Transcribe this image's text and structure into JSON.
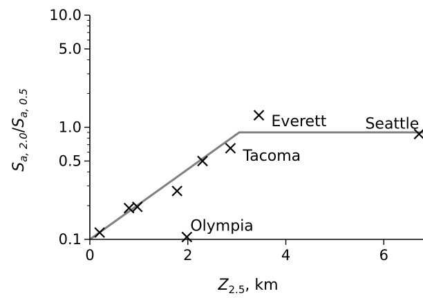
{
  "chart_data": {
    "type": "scatter",
    "title": "",
    "xlabel": "Z",
    "xlabel_sub": "2.5",
    "xlabel_unit": ", km",
    "ylabel_parts": [
      {
        "text": "S",
        "style": "italic",
        "sub": false
      },
      {
        "text": "a, 2.0",
        "style": "italic",
        "sub": true
      },
      {
        "text": "/",
        "style": "normal",
        "sub": false
      },
      {
        "text": "S",
        "style": "italic",
        "sub": false
      },
      {
        "text": "a, 0.5",
        "style": "italic",
        "sub": true
      }
    ],
    "xlim": [
      0,
      6.8
    ],
    "ylim": [
      0.1,
      10.0
    ],
    "yscale": "log",
    "x_ticks": [
      {
        "value": 0,
        "label": "0"
      },
      {
        "value": 2,
        "label": "2"
      },
      {
        "value": 4,
        "label": "4"
      },
      {
        "value": 6,
        "label": "6"
      }
    ],
    "y_ticks": [
      {
        "value": 0.1,
        "label": "0.1"
      },
      {
        "value": 0.5,
        "label": "0.5"
      },
      {
        "value": 1.0,
        "label": "1.0"
      },
      {
        "value": 5.0,
        "label": "5.0"
      },
      {
        "value": 10.0,
        "label": "10.0"
      }
    ],
    "grid": false,
    "points": [
      {
        "x": 0.2,
        "y": 0.115,
        "label": ""
      },
      {
        "x": 0.8,
        "y": 0.19,
        "label": ""
      },
      {
        "x": 0.97,
        "y": 0.195,
        "label": ""
      },
      {
        "x": 1.78,
        "y": 0.27,
        "label": ""
      },
      {
        "x": 2.3,
        "y": 0.5,
        "label": ""
      },
      {
        "x": 2.87,
        "y": 0.65,
        "label": "Tacoma"
      },
      {
        "x": 1.98,
        "y": 0.105,
        "label": "Olympia"
      },
      {
        "x": 3.45,
        "y": 1.28,
        "label": "Everett"
      },
      {
        "x": 6.72,
        "y": 0.87,
        "label": "Seattle"
      }
    ],
    "trend_line": {
      "x": [
        0,
        3.05,
        6.8
      ],
      "y": [
        0.1,
        0.9,
        0.9
      ]
    },
    "colors": {
      "marker": "#000000",
      "trend_line": "#808080",
      "axes": "#000000"
    }
  }
}
